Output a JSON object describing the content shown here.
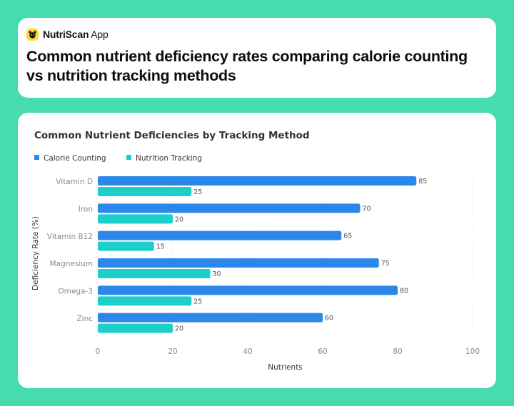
{
  "app": {
    "brand_bold": "NutriScan",
    "brand_rest": " App"
  },
  "page_title": "Common nutrient deficiency rates comparing calorie counting vs nutrition tracking methods",
  "colors": {
    "background": "#47dbb0",
    "series1": "#2b88e8",
    "series2": "#1ccfca",
    "logo": "#fdd835"
  },
  "chart_data": {
    "type": "bar",
    "orientation": "horizontal",
    "title": "Common Nutrient Deficiencies by Tracking Method",
    "xlabel": "Nutrients",
    "ylabel": "Deficiency Rate (%)",
    "xlim": [
      0,
      100
    ],
    "xticks": [
      0,
      20,
      40,
      60,
      80,
      100
    ],
    "categories": [
      "Vitamin D",
      "Iron",
      "Vitamin B12",
      "Magnesium",
      "Omega-3",
      "Zinc"
    ],
    "series": [
      {
        "name": "Calorie Counting",
        "color": "#2b88e8",
        "values": [
          85,
          70,
          65,
          75,
          80,
          60
        ]
      },
      {
        "name": "Nutrition Tracking",
        "color": "#1ccfca",
        "values": [
          25,
          20,
          15,
          30,
          25,
          20
        ]
      }
    ],
    "legend_position": "top-left",
    "grid": true
  }
}
